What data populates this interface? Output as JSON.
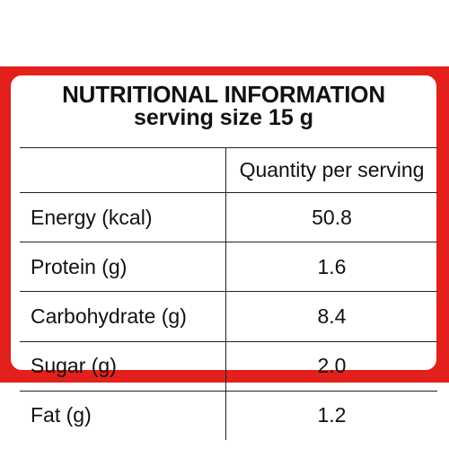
{
  "header": {
    "title": "NUTRITIONAL INFORMATION",
    "serving": "serving size 15 g"
  },
  "table": {
    "column_header": "Quantity per serving",
    "rows": [
      {
        "name": "Energy (kcal)",
        "value": "50.8"
      },
      {
        "name": "Protein (g)",
        "value": "1.6"
      },
      {
        "name": "Carbohydrate (g)",
        "value": "8.4"
      },
      {
        "name": "Sugar (g)",
        "value": "2.0"
      },
      {
        "name": "Fat (g)",
        "value": "1.2"
      }
    ]
  },
  "colors": {
    "frame": "#e3201b",
    "text": "#111111"
  }
}
